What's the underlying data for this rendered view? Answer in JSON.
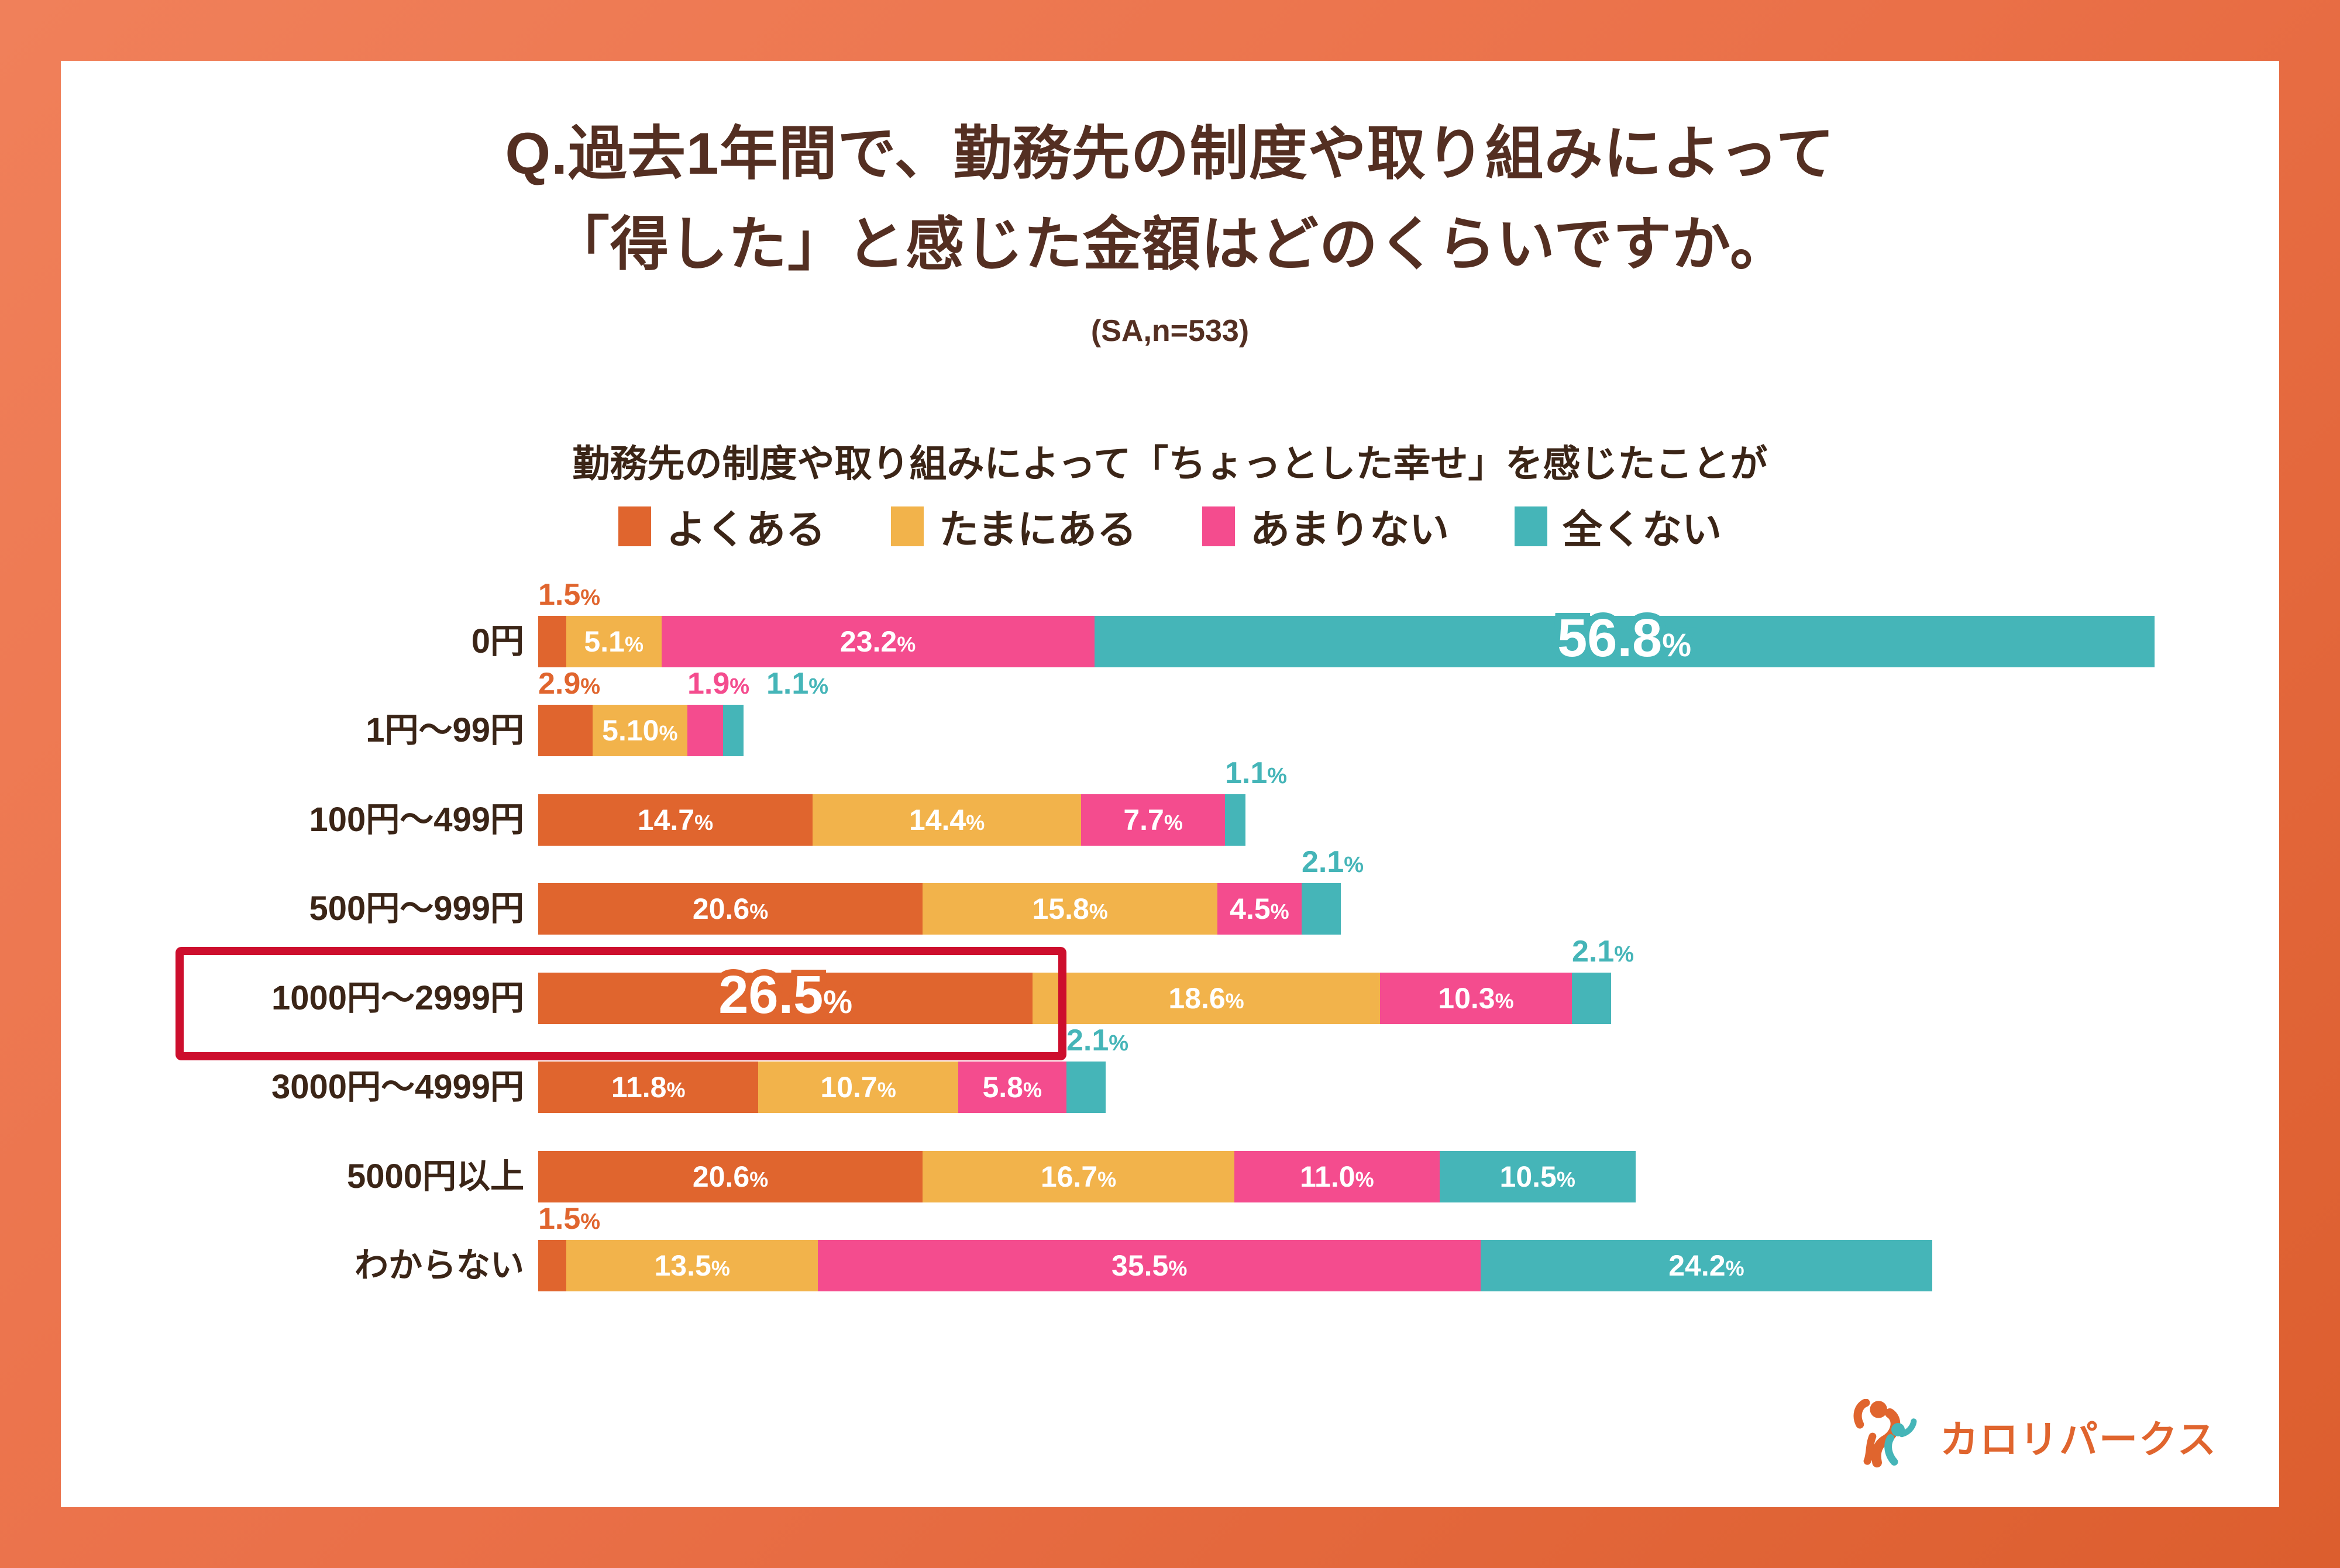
{
  "header": {
    "title_line1": "Q.過去1年間で、勤務先の制度や取り組みによって",
    "title_line2": "「得した」と感じた金額はどのくらいですか。",
    "sample": "(SA,n=533)"
  },
  "subtitle": "勤務先の制度や取り組みによって「ちょっとした幸せ」を感じたことが",
  "colors": {
    "orange": "#E0652E",
    "yellow": "#F2B34B",
    "pink": "#F44C8E",
    "teal": "#45B5B8",
    "highlight_red": "#CD0E2D",
    "title_brown": "#542F22",
    "text_brown": "#3B2517",
    "frame_gradient_start": "#F0805A",
    "frame_gradient_end": "#DC5E2E",
    "value_text_white": "#FFFFFF"
  },
  "legend": {
    "items": [
      {
        "label": "よくある",
        "color": "orange"
      },
      {
        "label": "たまにある",
        "color": "yellow"
      },
      {
        "label": "あまりない",
        "color": "pink"
      },
      {
        "label": "全くない",
        "color": "teal"
      }
    ]
  },
  "chart_data": {
    "type": "bar",
    "orientation": "horizontal-stacked",
    "unit": "%",
    "xlim": [
      0,
      100
    ],
    "grid": false,
    "legend_position": "top",
    "categories": [
      "0円",
      "1円〜99円",
      "100円〜499円",
      "500円〜999円",
      "1000円〜2999円",
      "3000円〜4999円",
      "5000円以上",
      "わからない"
    ],
    "series": [
      {
        "name": "よくある",
        "values": [
          1.5,
          2.9,
          14.7,
          20.6,
          26.5,
          11.8,
          20.6,
          1.5
        ]
      },
      {
        "name": "たまにある",
        "values": [
          5.1,
          5.1,
          14.4,
          15.8,
          18.6,
          10.7,
          16.7,
          13.5
        ]
      },
      {
        "name": "あまりない",
        "values": [
          23.2,
          1.9,
          7.7,
          4.5,
          10.3,
          5.8,
          11.0,
          35.5
        ]
      },
      {
        "name": "全くない",
        "values": [
          56.8,
          1.1,
          1.1,
          2.1,
          2.1,
          2.1,
          10.5,
          24.2
        ]
      }
    ],
    "highlighted_category": "1000円〜2999円",
    "rows": [
      {
        "label": "0円",
        "highlight": false,
        "segments": [
          {
            "series": "よくある",
            "color": "orange",
            "pct": 1.5,
            "text": "1.5",
            "display": "above"
          },
          {
            "series": "たまにある",
            "color": "yellow",
            "pct": 5.1,
            "text": "5.1",
            "display": "inside"
          },
          {
            "series": "あまりない",
            "color": "pink",
            "pct": 23.2,
            "text": "23.2",
            "display": "inside"
          },
          {
            "series": "全くない",
            "color": "teal",
            "pct": 56.8,
            "text": "56.8",
            "display": "inside-big"
          }
        ]
      },
      {
        "label": "1円〜99円",
        "highlight": false,
        "segments": [
          {
            "series": "よくある",
            "color": "orange",
            "pct": 2.9,
            "text": "2.9",
            "display": "above"
          },
          {
            "series": "たまにある",
            "color": "yellow",
            "pct": 5.1,
            "text": "5.10",
            "display": "inside"
          },
          {
            "series": "あまりない",
            "color": "pink",
            "pct": 1.9,
            "text": "1.9",
            "display": "above"
          },
          {
            "series": "全くない",
            "color": "teal",
            "pct": 1.1,
            "text": "1.1",
            "display": "above"
          }
        ]
      },
      {
        "label": "100円〜499円",
        "highlight": false,
        "segments": [
          {
            "series": "よくある",
            "color": "orange",
            "pct": 14.7,
            "text": "14.7",
            "display": "inside"
          },
          {
            "series": "たまにある",
            "color": "yellow",
            "pct": 14.4,
            "text": "14.4",
            "display": "inside"
          },
          {
            "series": "あまりない",
            "color": "pink",
            "pct": 7.7,
            "text": "7.7",
            "display": "inside"
          },
          {
            "series": "全くない",
            "color": "teal",
            "pct": 1.1,
            "text": "1.1",
            "display": "above"
          }
        ]
      },
      {
        "label": "500円〜999円",
        "highlight": false,
        "segments": [
          {
            "series": "よくある",
            "color": "orange",
            "pct": 20.6,
            "text": "20.6",
            "display": "inside"
          },
          {
            "series": "たまにある",
            "color": "yellow",
            "pct": 15.8,
            "text": "15.8",
            "display": "inside"
          },
          {
            "series": "あまりない",
            "color": "pink",
            "pct": 4.5,
            "text": "4.5",
            "display": "inside"
          },
          {
            "series": "全くない",
            "color": "teal",
            "pct": 2.1,
            "text": "2.1",
            "display": "above"
          }
        ]
      },
      {
        "label": "1000円〜2999円",
        "highlight": true,
        "segments": [
          {
            "series": "よくある",
            "color": "orange",
            "pct": 26.5,
            "text": "26.5",
            "display": "inside-big"
          },
          {
            "series": "たまにある",
            "color": "yellow",
            "pct": 18.6,
            "text": "18.6",
            "display": "inside"
          },
          {
            "series": "あまりない",
            "color": "pink",
            "pct": 10.3,
            "text": "10.3",
            "display": "inside"
          },
          {
            "series": "全くない",
            "color": "teal",
            "pct": 2.1,
            "text": "2.1",
            "display": "above"
          }
        ]
      },
      {
        "label": "3000円〜4999円",
        "highlight": false,
        "segments": [
          {
            "series": "よくある",
            "color": "orange",
            "pct": 11.8,
            "text": "11.8",
            "display": "inside"
          },
          {
            "series": "たまにある",
            "color": "yellow",
            "pct": 10.7,
            "text": "10.7",
            "display": "inside"
          },
          {
            "series": "あまりない",
            "color": "pink",
            "pct": 5.8,
            "text": "5.8",
            "display": "inside"
          },
          {
            "series": "全くない",
            "color": "teal",
            "pct": 2.1,
            "text": "2.1",
            "display": "above"
          }
        ]
      },
      {
        "label": "5000円以上",
        "highlight": false,
        "segments": [
          {
            "series": "よくある",
            "color": "orange",
            "pct": 20.6,
            "text": "20.6",
            "display": "inside"
          },
          {
            "series": "たまにある",
            "color": "yellow",
            "pct": 16.7,
            "text": "16.7",
            "display": "inside"
          },
          {
            "series": "あまりない",
            "color": "pink",
            "pct": 11.0,
            "text": "11.0",
            "display": "inside"
          },
          {
            "series": "全くない",
            "color": "teal",
            "pct": 10.5,
            "text": "10.5",
            "display": "inside"
          }
        ]
      },
      {
        "label": "わからない",
        "highlight": false,
        "segments": [
          {
            "series": "よくある",
            "color": "orange",
            "pct": 1.5,
            "text": "1.5",
            "display": "above"
          },
          {
            "series": "たまにある",
            "color": "yellow",
            "pct": 13.5,
            "text": "13.5",
            "display": "inside"
          },
          {
            "series": "あまりない",
            "color": "pink",
            "pct": 35.5,
            "text": "35.5",
            "display": "inside"
          },
          {
            "series": "全くない",
            "color": "teal",
            "pct": 24.2,
            "text": "24.2",
            "display": "inside"
          }
        ]
      }
    ]
  },
  "logo": {
    "text": "カロリパークス"
  }
}
